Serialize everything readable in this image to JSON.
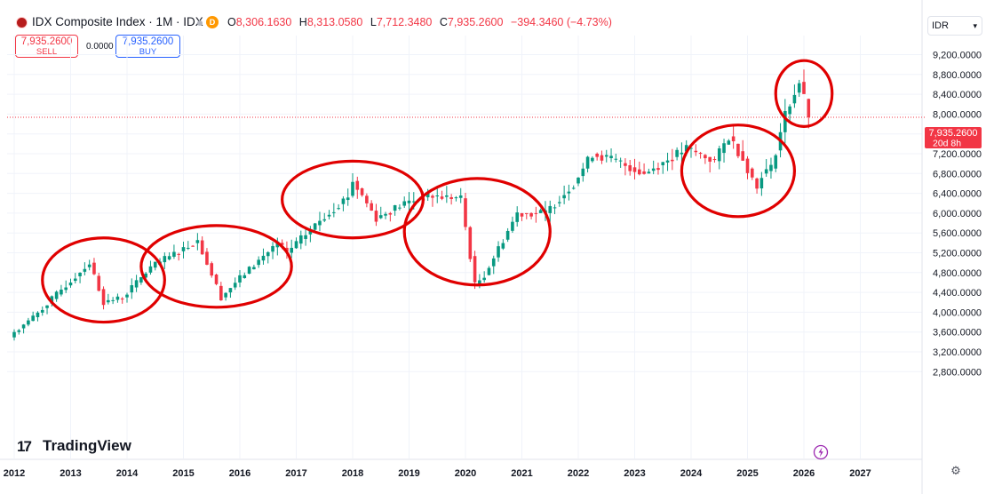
{
  "header": {
    "symbol": "IDX Composite Index · 1M · IDX",
    "badge": "D",
    "ohlc": [
      {
        "k": "O",
        "v": "8,306.1630"
      },
      {
        "k": "H",
        "v": "8,313.0580"
      },
      {
        "k": "L",
        "v": "7,712.3480"
      },
      {
        "k": "C",
        "v": "7,935.2600"
      }
    ],
    "change": "−394.3460 (−4.73%)"
  },
  "trade": {
    "sell_price": "7,935.2600",
    "sell_label": "SELL",
    "spread": "0.0000",
    "buy_price": "7,935.2600",
    "buy_label": "BUY"
  },
  "currency": "IDR",
  "price_label": {
    "price": "7,935.2600",
    "countdown": "20d 8h"
  },
  "logo": "TradingView",
  "colors": {
    "up": "#089981",
    "down": "#f23645",
    "circle": "#e00000"
  },
  "chart_data": {
    "type": "candlestick",
    "title": "IDX Composite Index · 1M · IDX",
    "y_axis_labels": [
      "9,200.0000",
      "8,800.0000",
      "8,400.0000",
      "8,000.0000",
      "7,600.0000",
      "7,200.0000",
      "6,800.0000",
      "6,400.0000",
      "6,000.0000",
      "5,600.0000",
      "5,200.0000",
      "4,800.0000",
      "4,400.0000",
      "4,000.0000",
      "3,600.0000",
      "3,200.0000",
      "2,800.0000"
    ],
    "x_axis_labels": [
      "2012",
      "2013",
      "2014",
      "2015",
      "2016",
      "2017",
      "2018",
      "2019",
      "2020",
      "2021",
      "2022",
      "2023",
      "2024",
      "2025",
      "2026",
      "2027"
    ],
    "ylim": [
      2650,
      9450
    ],
    "grid": true,
    "last_price": 7935.26,
    "anchors": [
      [
        "2012-01",
        3600
      ],
      [
        "2012-05",
        3900
      ],
      [
        "2013-05",
        5000
      ],
      [
        "2013-08",
        4200
      ],
      [
        "2013-12",
        4300
      ],
      [
        "2014-06",
        4900
      ],
      [
        "2015-04",
        5450
      ],
      [
        "2015-09",
        4300
      ],
      [
        "2015-12",
        4600
      ],
      [
        "2016-09",
        5400
      ],
      [
        "2016-11",
        5200
      ],
      [
        "2017-06",
        5850
      ],
      [
        "2017-12",
        6350
      ],
      [
        "2018-01",
        6650
      ],
      [
        "2018-06",
        5900
      ],
      [
        "2018-12",
        6200
      ],
      [
        "2019-05",
        6350
      ],
      [
        "2019-12",
        6300
      ],
      [
        "2020-03",
        4550
      ],
      [
        "2020-05",
        4750
      ],
      [
        "2020-12",
        6000
      ],
      [
        "2021-06",
        6000
      ],
      [
        "2021-12",
        6600
      ],
      [
        "2022-04",
        7200
      ],
      [
        "2022-09",
        7050
      ],
      [
        "2023-03",
        6800
      ],
      [
        "2023-12",
        7300
      ],
      [
        "2024-06",
        7050
      ],
      [
        "2024-09",
        7550
      ],
      [
        "2024-12",
        7100
      ],
      [
        "2025-03",
        6500
      ],
      [
        "2025-04",
        6800
      ],
      [
        "2025-06",
        6900
      ],
      [
        "2025-09",
        8000
      ],
      [
        "2025-12",
        8650
      ],
      [
        "2026-01",
        8306
      ],
      [
        "2026-02",
        7935
      ]
    ],
    "last_candle": {
      "date": "2026-02",
      "open": 8306.163,
      "high": 8313.058,
      "low": 7712.348,
      "close": 7935.26
    },
    "annotations": [
      {
        "shape": "ellipse",
        "center": [
          "2013-09",
          4650
        ],
        "x_span_months": [
          -14,
          12
        ],
        "y_span": [
          -850,
          850
        ]
      },
      {
        "shape": "ellipse",
        "center": [
          "2015-09",
          4900
        ],
        "x_span_months": [
          -17,
          15
        ],
        "y_span": [
          -800,
          850
        ]
      },
      {
        "shape": "ellipse",
        "center": [
          "2018-02",
          6250
        ],
        "x_span_months": [
          -16,
          14
        ],
        "y_span": [
          -750,
          800
        ]
      },
      {
        "shape": "ellipse",
        "center": [
          "2020-03",
          5550
        ],
        "x_span_months": [
          -15,
          16
        ],
        "y_span": [
          -1000,
          1150
        ]
      },
      {
        "shape": "ellipse",
        "center": [
          "2024-11",
          6850
        ],
        "x_span_months": [
          -12,
          12
        ],
        "y_span": [
          -920,
          930
        ]
      },
      {
        "shape": "ellipse",
        "center": [
          "2026-01",
          8400
        ],
        "x_span_months": [
          -6,
          6
        ],
        "y_span": [
          -650,
          680
        ]
      }
    ]
  }
}
